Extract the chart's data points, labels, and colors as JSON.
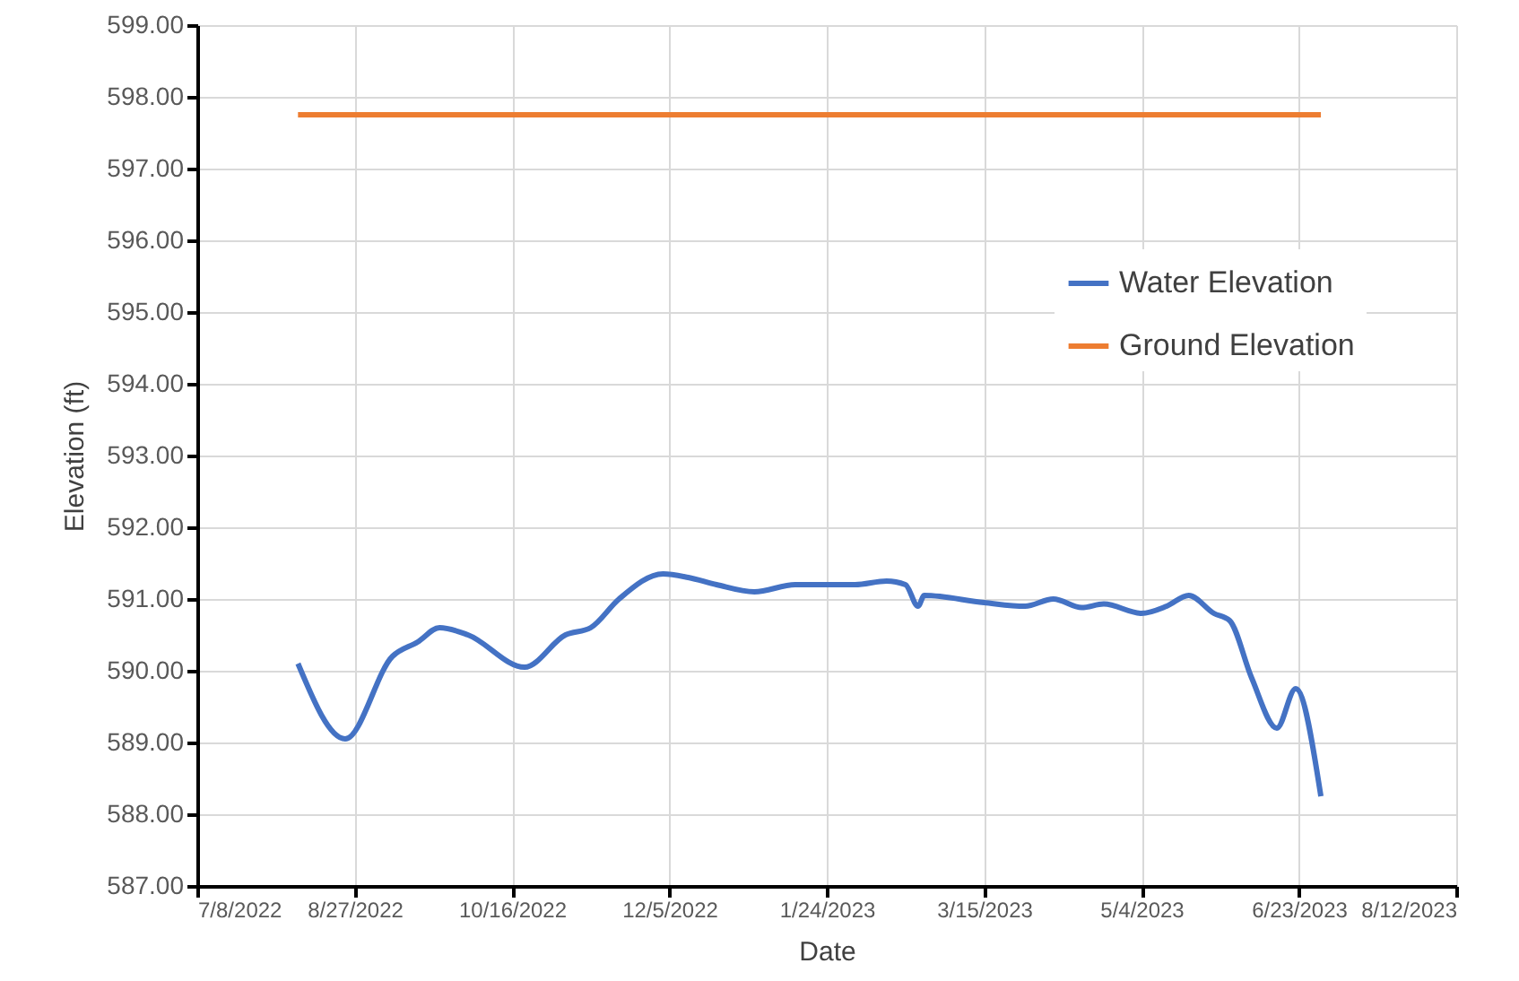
{
  "chart_data": {
    "type": "line",
    "xlabel": "Date",
    "ylabel": "Elevation (ft)",
    "xlim": [
      "2022-07-08",
      "2023-08-12"
    ],
    "xticks": [
      {
        "value": "2022-07-08",
        "label": "7/8/2022"
      },
      {
        "value": "2022-08-27",
        "label": "8/27/2022"
      },
      {
        "value": "2022-10-16",
        "label": "10/16/2022"
      },
      {
        "value": "2022-12-05",
        "label": "12/5/2022"
      },
      {
        "value": "2023-01-24",
        "label": "1/24/2023"
      },
      {
        "value": "2023-03-15",
        "label": "3/15/2023"
      },
      {
        "value": "2023-05-04",
        "label": "5/4/2023"
      },
      {
        "value": "2023-06-23",
        "label": "6/23/2023"
      },
      {
        "value": "2023-08-12",
        "label": "8/12/2023"
      }
    ],
    "ylim": [
      587,
      599
    ],
    "yticks": [
      {
        "value": 587,
        "label": "587.00"
      },
      {
        "value": 588,
        "label": "588.00"
      },
      {
        "value": 589,
        "label": "589.00"
      },
      {
        "value": 590,
        "label": "590.00"
      },
      {
        "value": 591,
        "label": "591.00"
      },
      {
        "value": 592,
        "label": "592.00"
      },
      {
        "value": 593,
        "label": "593.00"
      },
      {
        "value": 594,
        "label": "594.00"
      },
      {
        "value": 595,
        "label": "595.00"
      },
      {
        "value": 596,
        "label": "596.00"
      },
      {
        "value": 597,
        "label": "597.00"
      },
      {
        "value": 598,
        "label": "598.00"
      },
      {
        "value": 599,
        "label": "599.00"
      }
    ],
    "grid": true,
    "legend": "right",
    "line_style": "solid",
    "marker": "none",
    "series": [
      {
        "name": "Water Elevation",
        "color": "#4472c4",
        "x": [
          "2022-08-09",
          "2022-08-24",
          "2022-09-08",
          "2022-09-16",
          "2022-09-23",
          "2022-10-02",
          "2022-10-20",
          "2022-11-02",
          "2022-11-10",
          "2022-11-19",
          "2022-12-03",
          "2022-12-11",
          "2022-12-20",
          "2023-01-01",
          "2023-01-14",
          "2023-02-02",
          "2023-02-12",
          "2023-02-18",
          "2023-02-22",
          "2023-02-24",
          "2023-03-15",
          "2023-03-28",
          "2023-04-06",
          "2023-04-15",
          "2023-04-22",
          "2023-05-04",
          "2023-05-12",
          "2023-05-19",
          "2023-05-27",
          "2023-06-01",
          "2023-06-08",
          "2023-06-16",
          "2023-06-22",
          "2023-06-30"
        ],
        "values": [
          590.1,
          589.05,
          590.2,
          590.4,
          590.6,
          590.5,
          590.05,
          590.5,
          590.6,
          591.0,
          591.35,
          591.3,
          591.2,
          591.1,
          591.2,
          591.2,
          591.25,
          591.2,
          590.9,
          591.05,
          590.95,
          590.9,
          591.0,
          590.88,
          590.93,
          590.8,
          590.9,
          591.05,
          590.8,
          590.7,
          589.9,
          589.2,
          589.75,
          588.25
        ]
      },
      {
        "name": "Ground Elevation",
        "color": "#ed7d31",
        "x": [
          "2022-08-09",
          "2023-06-30"
        ],
        "values": [
          597.75,
          597.75
        ]
      }
    ]
  }
}
